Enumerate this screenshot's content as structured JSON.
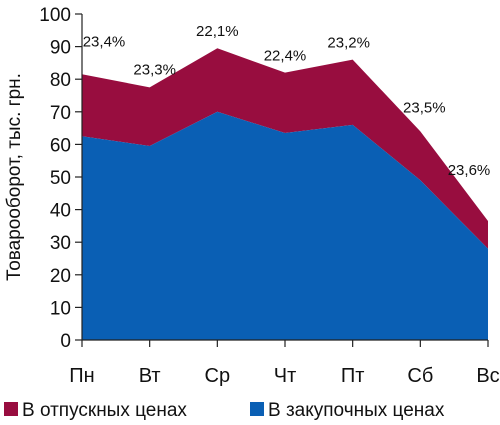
{
  "chart_data": {
    "type": "area",
    "stacked": true,
    "categories": [
      "Пн",
      "Вт",
      "Ср",
      "Чт",
      "Пт",
      "Сб",
      "Вс"
    ],
    "ylabel": "Товарооборот, тыс. грн.",
    "xlabel": "",
    "ylim": [
      0,
      100
    ],
    "yticks": [
      0,
      10,
      20,
      30,
      40,
      50,
      60,
      70,
      80,
      90,
      100
    ],
    "grid": false,
    "legend_position": "bottom",
    "series": [
      {
        "name": "В закупочных ценах",
        "color": "#0a5fb4",
        "values": [
          62.5,
          59.5,
          70,
          63.5,
          66,
          49,
          28
        ]
      },
      {
        "name": "В отпускных ценах",
        "color": "#980d3f",
        "values": [
          19,
          18,
          19.5,
          18.5,
          20,
          15,
          8.5
        ]
      }
    ],
    "annotations": [
      "23,4%",
      "23,3%",
      "22,1%",
      "22,4%",
      "23,2%",
      "23,5%",
      "23,6%"
    ]
  }
}
